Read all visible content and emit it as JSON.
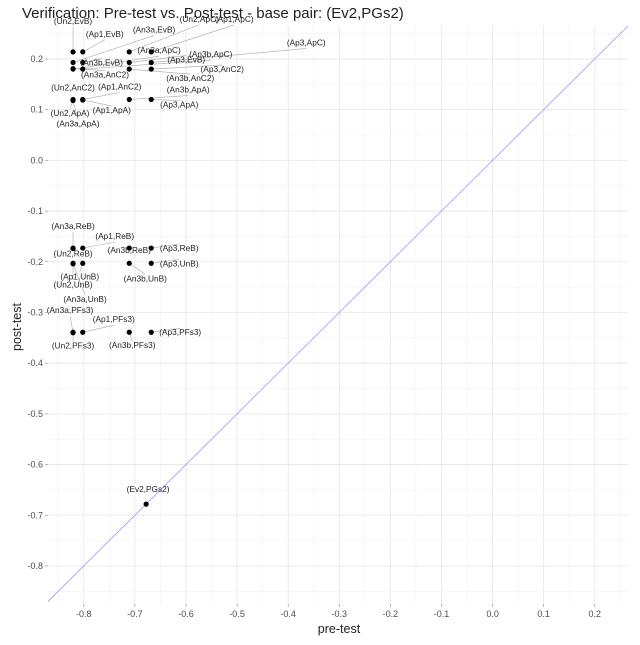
{
  "chart_data": {
    "type": "scatter",
    "title": "Verification: Pre-test vs. Post-test - base pair: (Ev2,PGs2)",
    "xlabel": "pre-test",
    "ylabel": "post-test",
    "xlim": [
      -0.87,
      0.265
    ],
    "ylim": [
      -0.875,
      0.265
    ],
    "xticks": [
      -0.8,
      -0.7,
      -0.6,
      -0.5,
      -0.4,
      -0.3,
      -0.2,
      -0.1,
      0.0,
      0.1,
      0.2
    ],
    "yticks": [
      0.2,
      0.1,
      0.0,
      -0.1,
      -0.2,
      -0.3,
      -0.4,
      -0.5,
      -0.6,
      -0.7,
      -0.8
    ],
    "xtick_labels": [
      "-0.8",
      "-0.7",
      "-0.6",
      "-0.5",
      "-0.4",
      "-0.3",
      "-0.2",
      "-0.1",
      "0.0",
      "0.1",
      "0.2"
    ],
    "ytick_labels": [
      "0.2",
      "0.1",
      "0.0",
      "-0.1",
      "-0.2",
      "-0.3",
      "-0.4",
      "-0.5",
      "-0.6",
      "-0.7",
      "-0.8"
    ],
    "grid": true,
    "reference_line": {
      "type": "identity",
      "color": "#9999ff"
    },
    "point_color": "#000000",
    "points": [
      {
        "label": "(Un2,EvB)",
        "x": -0.821,
        "y": 0.214
      },
      {
        "label": "(An3a,EvB)",
        "x": -0.821,
        "y": 0.193
      },
      {
        "label": "(Ap1,EvB)",
        "x": -0.802,
        "y": 0.214
      },
      {
        "label": "(An3b,EvB)",
        "x": -0.802,
        "y": 0.193
      },
      {
        "label": "(Ap3,EvB)",
        "x": -0.711,
        "y": 0.193
      },
      {
        "label": "(Un2,ApC)",
        "x": -0.711,
        "y": 0.214
      },
      {
        "label": "(Ap1,ApC)",
        "x": -0.668,
        "y": 0.214
      },
      {
        "label": "(An3a,ApC)",
        "x": -0.821,
        "y": 0.18
      },
      {
        "label": "(An3b,ApC)",
        "x": -0.802,
        "y": 0.18
      },
      {
        "label": "(Ap3,ApC)",
        "x": -0.668,
        "y": 0.193
      },
      {
        "label": "(An3a,AnC2)",
        "x": -0.821,
        "y": 0.181
      },
      {
        "label": "(An3b,AnC2)",
        "x": -0.711,
        "y": 0.18
      },
      {
        "label": "(Ap3,AnC2)",
        "x": -0.668,
        "y": 0.18
      },
      {
        "label": "(Un2,AnC2)",
        "x": -0.821,
        "y": 0.12
      },
      {
        "label": "(Ap1,AnC2)",
        "x": -0.802,
        "y": 0.12
      },
      {
        "label": "(Un2,ApA)",
        "x": -0.821,
        "y": 0.119
      },
      {
        "label": "(An3a,ApA)",
        "x": -0.821,
        "y": 0.118
      },
      {
        "label": "(Ap1,ApA)",
        "x": -0.802,
        "y": 0.119
      },
      {
        "label": "(An3b,ApA)",
        "x": -0.711,
        "y": 0.12
      },
      {
        "label": "(Ap3,ApA)",
        "x": -0.668,
        "y": 0.12
      },
      {
        "label": "(An3a,ReB)",
        "x": -0.821,
        "y": -0.173
      },
      {
        "label": "(Un2,ReB)",
        "x": -0.821,
        "y": -0.174
      },
      {
        "label": "(Ap1,ReB)",
        "x": -0.802,
        "y": -0.173
      },
      {
        "label": "(An3b,ReB)",
        "x": -0.711,
        "y": -0.173
      },
      {
        "label": "(Ap3,ReB)",
        "x": -0.668,
        "y": -0.173
      },
      {
        "label": "(Ap1,UnB)",
        "x": -0.802,
        "y": -0.203
      },
      {
        "label": "(Un2,UnB)",
        "x": -0.821,
        "y": -0.203
      },
      {
        "label": "(An3a,UnB)",
        "x": -0.821,
        "y": -0.204
      },
      {
        "label": "(An3b,UnB)",
        "x": -0.711,
        "y": -0.203
      },
      {
        "label": "(Ap3,UnB)",
        "x": -0.668,
        "y": -0.203
      },
      {
        "label": "(An3a,PFs3)",
        "x": -0.821,
        "y": -0.339
      },
      {
        "label": "(Ap1,PFs3)",
        "x": -0.802,
        "y": -0.339
      },
      {
        "label": "(Un2,PFs3)",
        "x": -0.821,
        "y": -0.34
      },
      {
        "label": "(An3b,PFs3)",
        "x": -0.711,
        "y": -0.339
      },
      {
        "label": "(Ap3,PFs3)",
        "x": -0.668,
        "y": -0.339
      },
      {
        "label": "(Ev2,PGs2)",
        "x": -0.678,
        "y": -0.678
      }
    ]
  }
}
